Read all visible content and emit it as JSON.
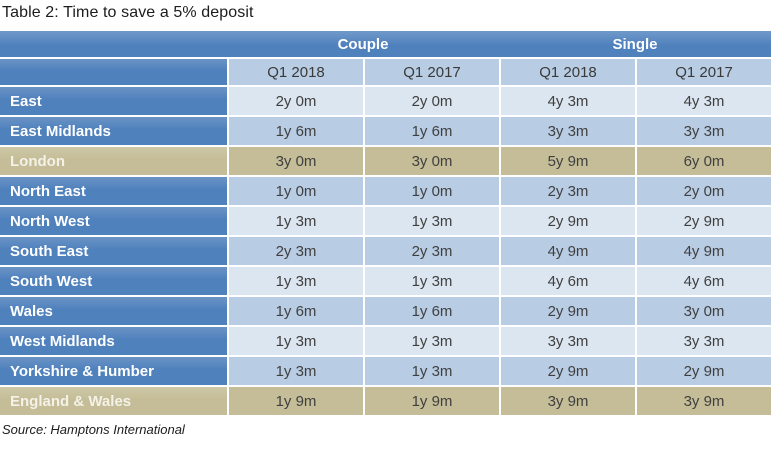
{
  "title": "Table 2: Time to save a 5% deposit",
  "source": "Source: Hamptons International",
  "table": {
    "group_headers": {
      "couple": "Couple",
      "single": "Single"
    },
    "column_headers": [
      "Q1 2018",
      "Q1 2017",
      "Q1 2018",
      "Q1 2017"
    ],
    "rows": [
      {
        "region": "East",
        "values": [
          "2y 0m",
          "2y 0m",
          "4y 3m",
          "4y 3m"
        ],
        "band": "light"
      },
      {
        "region": "East Midlands",
        "values": [
          "1y 6m",
          "1y 6m",
          "3y 3m",
          "3y 3m"
        ],
        "band": "medium"
      },
      {
        "region": "London",
        "values": [
          "3y 0m",
          "3y 0m",
          "5y 9m",
          "6y 0m"
        ],
        "band": "tan"
      },
      {
        "region": "North East",
        "values": [
          "1y 0m",
          "1y 0m",
          "2y 3m",
          "2y 0m"
        ],
        "band": "medium"
      },
      {
        "region": "North West",
        "values": [
          "1y 3m",
          "1y 3m",
          "2y 9m",
          "2y 9m"
        ],
        "band": "light"
      },
      {
        "region": "South East",
        "values": [
          "2y 3m",
          "2y 3m",
          "4y 9m",
          "4y 9m"
        ],
        "band": "medium"
      },
      {
        "region": "South West",
        "values": [
          "1y 3m",
          "1y 3m",
          "4y 6m",
          "4y 6m"
        ],
        "band": "light"
      },
      {
        "region": "Wales",
        "values": [
          "1y 6m",
          "1y 6m",
          "2y 9m",
          "3y 0m"
        ],
        "band": "medium"
      },
      {
        "region": "West Midlands",
        "values": [
          "1y 3m",
          "1y 3m",
          "3y 3m",
          "3y 3m"
        ],
        "band": "light"
      },
      {
        "region": "Yorkshire & Humber",
        "values": [
          "1y 3m",
          "1y 3m",
          "2y 9m",
          "2y 9m"
        ],
        "band": "medium"
      },
      {
        "region": "England & Wales",
        "values": [
          "1y 9m",
          "1y 9m",
          "3y 9m",
          "3y 9m"
        ],
        "band": "tan"
      }
    ],
    "colors": {
      "header_blue": "#4f81bd",
      "band_light": "#dce6f1",
      "band_medium": "#b8cce4",
      "highlight_tan": "#c4bd97",
      "text_dark": "#404040",
      "text_white": "#ffffff"
    }
  }
}
